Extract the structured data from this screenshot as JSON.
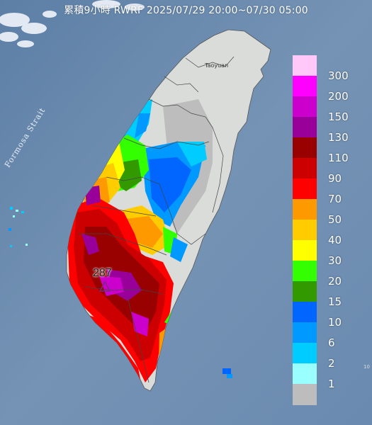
{
  "title": "累積9小時 RWRF 2025/07/29 20:00~07/30 05:00",
  "labels": {
    "strait": "Formosa Strait",
    "city": "Taoyuan",
    "max_value": "287",
    "corner_mark": "10"
  },
  "legend": {
    "items": [
      {
        "label": "300",
        "color": "#ffc8f8"
      },
      {
        "label": "200",
        "color": "#ff00ff"
      },
      {
        "label": "150",
        "color": "#cc00cc"
      },
      {
        "label": "130",
        "color": "#990099"
      },
      {
        "label": "110",
        "color": "#990000"
      },
      {
        "label": "90",
        "color": "#cc0000"
      },
      {
        "label": "70",
        "color": "#ff0000"
      },
      {
        "label": "50",
        "color": "#ff9900"
      },
      {
        "label": "40",
        "color": "#ffcc00"
      },
      {
        "label": "30",
        "color": "#ffff00"
      },
      {
        "label": "20",
        "color": "#33ff00"
      },
      {
        "label": "15",
        "color": "#339900"
      },
      {
        "label": "10",
        "color": "#0066ff"
      },
      {
        "label": "6",
        "color": "#0099ff"
      },
      {
        "label": "2",
        "color": "#00ccff"
      },
      {
        "label": "1",
        "color": "#99ffff"
      },
      {
        "label": "",
        "color": "#bdbdbd"
      }
    ]
  },
  "colors": {
    "sea": "#6f8fb0",
    "land": "#d9dcd9",
    "no_rain": "#bdbdbd"
  }
}
